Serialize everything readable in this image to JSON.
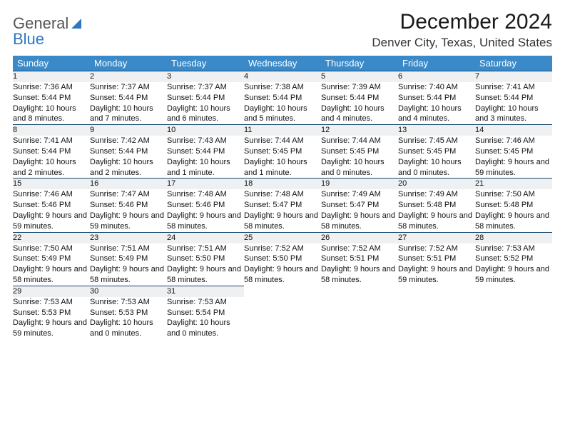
{
  "logo": {
    "text1": "General",
    "text2": "Blue"
  },
  "title": "December 2024",
  "location": "Denver City, Texas, United States",
  "colors": {
    "header_bg": "#3a8ac9",
    "header_text": "#ffffff",
    "daynum_bg": "#eef0f2",
    "row_divider": "#14456b",
    "logo_accent": "#2e78c2"
  },
  "calendar": {
    "day_headers": [
      "Sunday",
      "Monday",
      "Tuesday",
      "Wednesday",
      "Thursday",
      "Friday",
      "Saturday"
    ],
    "weeks": [
      [
        {
          "n": "1",
          "sunrise": "7:36 AM",
          "sunset": "5:44 PM",
          "daylight": "10 hours and 8 minutes."
        },
        {
          "n": "2",
          "sunrise": "7:37 AM",
          "sunset": "5:44 PM",
          "daylight": "10 hours and 7 minutes."
        },
        {
          "n": "3",
          "sunrise": "7:37 AM",
          "sunset": "5:44 PM",
          "daylight": "10 hours and 6 minutes."
        },
        {
          "n": "4",
          "sunrise": "7:38 AM",
          "sunset": "5:44 PM",
          "daylight": "10 hours and 5 minutes."
        },
        {
          "n": "5",
          "sunrise": "7:39 AM",
          "sunset": "5:44 PM",
          "daylight": "10 hours and 4 minutes."
        },
        {
          "n": "6",
          "sunrise": "7:40 AM",
          "sunset": "5:44 PM",
          "daylight": "10 hours and 4 minutes."
        },
        {
          "n": "7",
          "sunrise": "7:41 AM",
          "sunset": "5:44 PM",
          "daylight": "10 hours and 3 minutes."
        }
      ],
      [
        {
          "n": "8",
          "sunrise": "7:41 AM",
          "sunset": "5:44 PM",
          "daylight": "10 hours and 2 minutes."
        },
        {
          "n": "9",
          "sunrise": "7:42 AM",
          "sunset": "5:44 PM",
          "daylight": "10 hours and 2 minutes."
        },
        {
          "n": "10",
          "sunrise": "7:43 AM",
          "sunset": "5:44 PM",
          "daylight": "10 hours and 1 minute."
        },
        {
          "n": "11",
          "sunrise": "7:44 AM",
          "sunset": "5:45 PM",
          "daylight": "10 hours and 1 minute."
        },
        {
          "n": "12",
          "sunrise": "7:44 AM",
          "sunset": "5:45 PM",
          "daylight": "10 hours and 0 minutes."
        },
        {
          "n": "13",
          "sunrise": "7:45 AM",
          "sunset": "5:45 PM",
          "daylight": "10 hours and 0 minutes."
        },
        {
          "n": "14",
          "sunrise": "7:46 AM",
          "sunset": "5:45 PM",
          "daylight": "9 hours and 59 minutes."
        }
      ],
      [
        {
          "n": "15",
          "sunrise": "7:46 AM",
          "sunset": "5:46 PM",
          "daylight": "9 hours and 59 minutes."
        },
        {
          "n": "16",
          "sunrise": "7:47 AM",
          "sunset": "5:46 PM",
          "daylight": "9 hours and 59 minutes."
        },
        {
          "n": "17",
          "sunrise": "7:48 AM",
          "sunset": "5:46 PM",
          "daylight": "9 hours and 58 minutes."
        },
        {
          "n": "18",
          "sunrise": "7:48 AM",
          "sunset": "5:47 PM",
          "daylight": "9 hours and 58 minutes."
        },
        {
          "n": "19",
          "sunrise": "7:49 AM",
          "sunset": "5:47 PM",
          "daylight": "9 hours and 58 minutes."
        },
        {
          "n": "20",
          "sunrise": "7:49 AM",
          "sunset": "5:48 PM",
          "daylight": "9 hours and 58 minutes."
        },
        {
          "n": "21",
          "sunrise": "7:50 AM",
          "sunset": "5:48 PM",
          "daylight": "9 hours and 58 minutes."
        }
      ],
      [
        {
          "n": "22",
          "sunrise": "7:50 AM",
          "sunset": "5:49 PM",
          "daylight": "9 hours and 58 minutes."
        },
        {
          "n": "23",
          "sunrise": "7:51 AM",
          "sunset": "5:49 PM",
          "daylight": "9 hours and 58 minutes."
        },
        {
          "n": "24",
          "sunrise": "7:51 AM",
          "sunset": "5:50 PM",
          "daylight": "9 hours and 58 minutes."
        },
        {
          "n": "25",
          "sunrise": "7:52 AM",
          "sunset": "5:50 PM",
          "daylight": "9 hours and 58 minutes."
        },
        {
          "n": "26",
          "sunrise": "7:52 AM",
          "sunset": "5:51 PM",
          "daylight": "9 hours and 58 minutes."
        },
        {
          "n": "27",
          "sunrise": "7:52 AM",
          "sunset": "5:51 PM",
          "daylight": "9 hours and 59 minutes."
        },
        {
          "n": "28",
          "sunrise": "7:53 AM",
          "sunset": "5:52 PM",
          "daylight": "9 hours and 59 minutes."
        }
      ],
      [
        {
          "n": "29",
          "sunrise": "7:53 AM",
          "sunset": "5:53 PM",
          "daylight": "9 hours and 59 minutes."
        },
        {
          "n": "30",
          "sunrise": "7:53 AM",
          "sunset": "5:53 PM",
          "daylight": "10 hours and 0 minutes."
        },
        {
          "n": "31",
          "sunrise": "7:53 AM",
          "sunset": "5:54 PM",
          "daylight": "10 hours and 0 minutes."
        },
        null,
        null,
        null,
        null
      ]
    ],
    "labels": {
      "sunrise": "Sunrise: ",
      "sunset": "Sunset: ",
      "daylight": "Daylight: "
    }
  }
}
